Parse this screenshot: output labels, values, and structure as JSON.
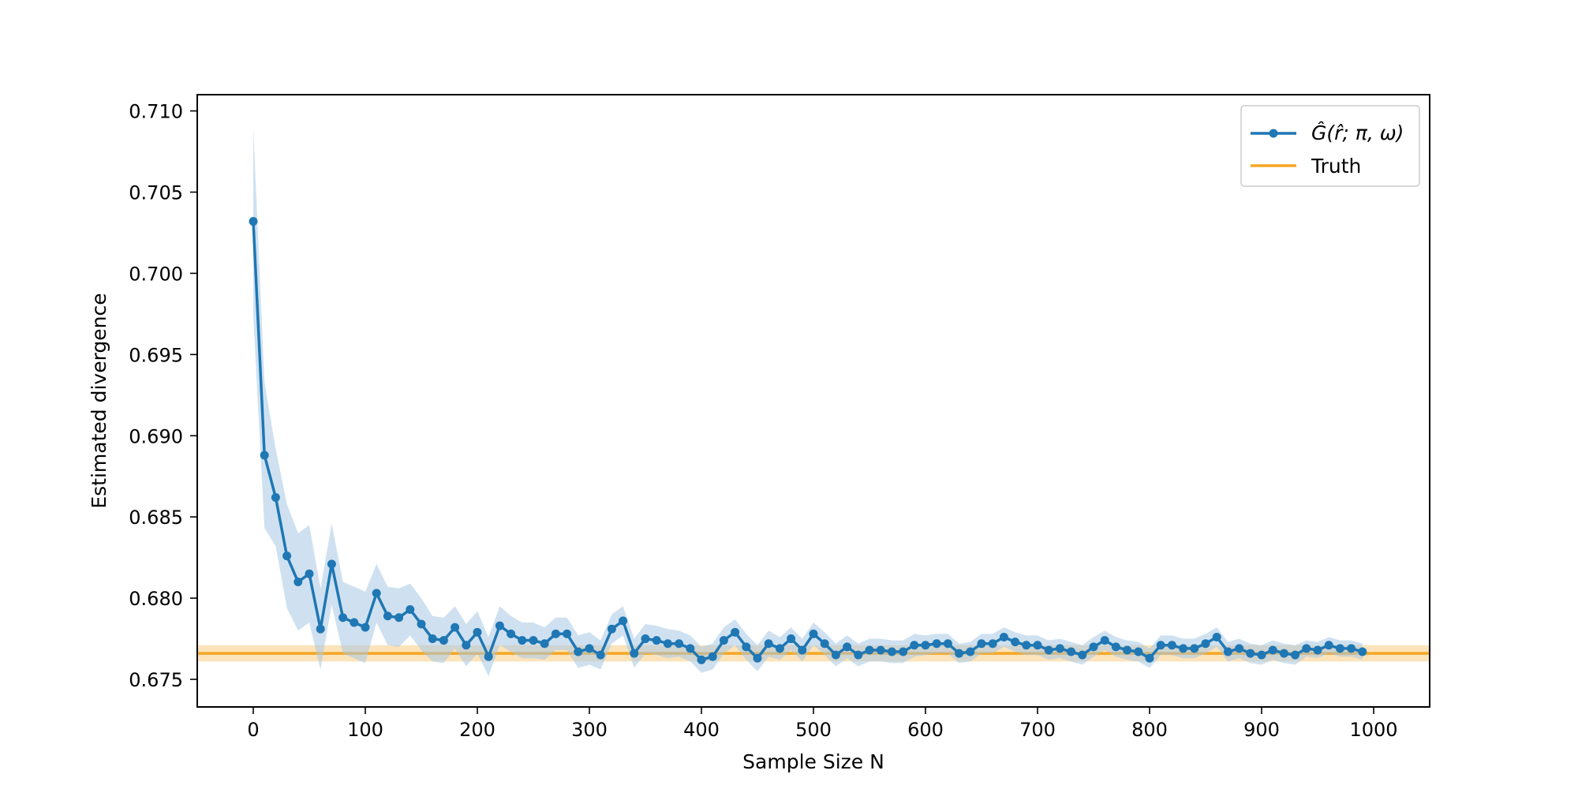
{
  "chart_data": {
    "type": "line",
    "title": "",
    "xlabel": "Sample Size N",
    "ylabel": "Estimated divergence",
    "xlim": [
      -50,
      1050
    ],
    "ylim": [
      0.6733,
      0.711
    ],
    "x_ticks": [
      0,
      100,
      200,
      300,
      400,
      500,
      600,
      700,
      800,
      900,
      1000
    ],
    "x_tick_labels": [
      "0",
      "100",
      "200",
      "300",
      "400",
      "500",
      "600",
      "700",
      "800",
      "900",
      "1000"
    ],
    "y_ticks": [
      0.675,
      0.68,
      0.685,
      0.69,
      0.695,
      0.7,
      0.705,
      0.71
    ],
    "y_tick_labels": [
      "0.675",
      "0.680",
      "0.685",
      "0.690",
      "0.695",
      "0.700",
      "0.705",
      "0.710"
    ],
    "grid": false,
    "legend_position": "top-right",
    "series": [
      {
        "name": "Ĝ(r̂; π, ω)",
        "color": "#1f77b4",
        "band_color": "#a8c8e4",
        "marker": "circle",
        "x": [
          0,
          10,
          20,
          30,
          40,
          50,
          60,
          70,
          80,
          90,
          100,
          110,
          120,
          130,
          140,
          150,
          160,
          170,
          180,
          190,
          200,
          210,
          220,
          230,
          240,
          250,
          260,
          270,
          280,
          290,
          300,
          310,
          320,
          330,
          340,
          350,
          360,
          370,
          380,
          390,
          400,
          410,
          420,
          430,
          440,
          450,
          460,
          470,
          480,
          490,
          500,
          510,
          520,
          530,
          540,
          550,
          560,
          570,
          580,
          590,
          600,
          610,
          620,
          630,
          640,
          650,
          660,
          670,
          680,
          690,
          700,
          710,
          720,
          730,
          740,
          750,
          760,
          770,
          780,
          790,
          800,
          810,
          820,
          830,
          840,
          850,
          860,
          870,
          880,
          890,
          900,
          910,
          920,
          930,
          940,
          950,
          960,
          970,
          980,
          990
        ],
        "values": [
          0.7032,
          0.6888,
          0.6862,
          0.6826,
          0.681,
          0.6815,
          0.6781,
          0.6821,
          0.6788,
          0.6785,
          0.6782,
          0.6803,
          0.6789,
          0.6788,
          0.6793,
          0.6784,
          0.6775,
          0.6774,
          0.6782,
          0.6771,
          0.6779,
          0.6764,
          0.6783,
          0.6778,
          0.6774,
          0.6774,
          0.6772,
          0.6778,
          0.6778,
          0.6767,
          0.6769,
          0.6765,
          0.6781,
          0.6786,
          0.6766,
          0.6775,
          0.6774,
          0.6772,
          0.6772,
          0.6769,
          0.6762,
          0.6764,
          0.6774,
          0.6779,
          0.677,
          0.6763,
          0.6772,
          0.6769,
          0.6775,
          0.6768,
          0.6778,
          0.6772,
          0.6765,
          0.677,
          0.6765,
          0.6768,
          0.6768,
          0.6767,
          0.6767,
          0.6771,
          0.6771,
          0.6772,
          0.6772,
          0.6766,
          0.6767,
          0.6772,
          0.6772,
          0.6776,
          0.6773,
          0.6771,
          0.6771,
          0.6768,
          0.6769,
          0.6767,
          0.6765,
          0.677,
          0.6774,
          0.677,
          0.6768,
          0.6767,
          0.6763,
          0.6771,
          0.6771,
          0.6769,
          0.6769,
          0.6772,
          0.6776,
          0.6767,
          0.6769,
          0.6766,
          0.6765,
          0.6768,
          0.6766,
          0.6765,
          0.6769,
          0.6768,
          0.6771,
          0.6769,
          0.6769,
          0.6767
        ],
        "band_half_width": [
          0.0058,
          0.0045,
          0.003,
          0.0032,
          0.003,
          0.003,
          0.0025,
          0.0025,
          0.0022,
          0.0022,
          0.0022,
          0.0018,
          0.0018,
          0.0018,
          0.0016,
          0.0016,
          0.0014,
          0.0014,
          0.0013,
          0.0013,
          0.0013,
          0.0012,
          0.0012,
          0.0011,
          0.0011,
          0.0011,
          0.001,
          0.001,
          0.001,
          0.001,
          0.001,
          0.0009,
          0.0009,
          0.0009,
          0.0009,
          0.0009,
          0.0009,
          0.0009,
          0.0008,
          0.0008,
          0.0008,
          0.0008,
          0.0008,
          0.0008,
          0.0008,
          0.0008,
          0.0008,
          0.0007,
          0.0007,
          0.0007,
          0.0007,
          0.0007,
          0.0007,
          0.0007,
          0.0007,
          0.0007,
          0.0007,
          0.0007,
          0.0007,
          0.0007,
          0.0006,
          0.0006,
          0.0006,
          0.0006,
          0.0006,
          0.0006,
          0.0006,
          0.0006,
          0.0006,
          0.0006,
          0.0006,
          0.0006,
          0.0006,
          0.0006,
          0.0006,
          0.0006,
          0.0006,
          0.0006,
          0.0006,
          0.0006,
          0.0006,
          0.0006,
          0.0006,
          0.0006,
          0.0006,
          0.0006,
          0.0006,
          0.0006,
          0.0006,
          0.0006,
          0.0006,
          0.0006,
          0.0006,
          0.0006,
          0.0005,
          0.0005,
          0.0005,
          0.0005,
          0.0005,
          0.0005
        ]
      },
      {
        "name": "Truth",
        "color": "#f5a623",
        "band_color": "#fbd9a3",
        "value": 0.6766,
        "band": [
          0.6761,
          0.6771
        ]
      }
    ]
  }
}
